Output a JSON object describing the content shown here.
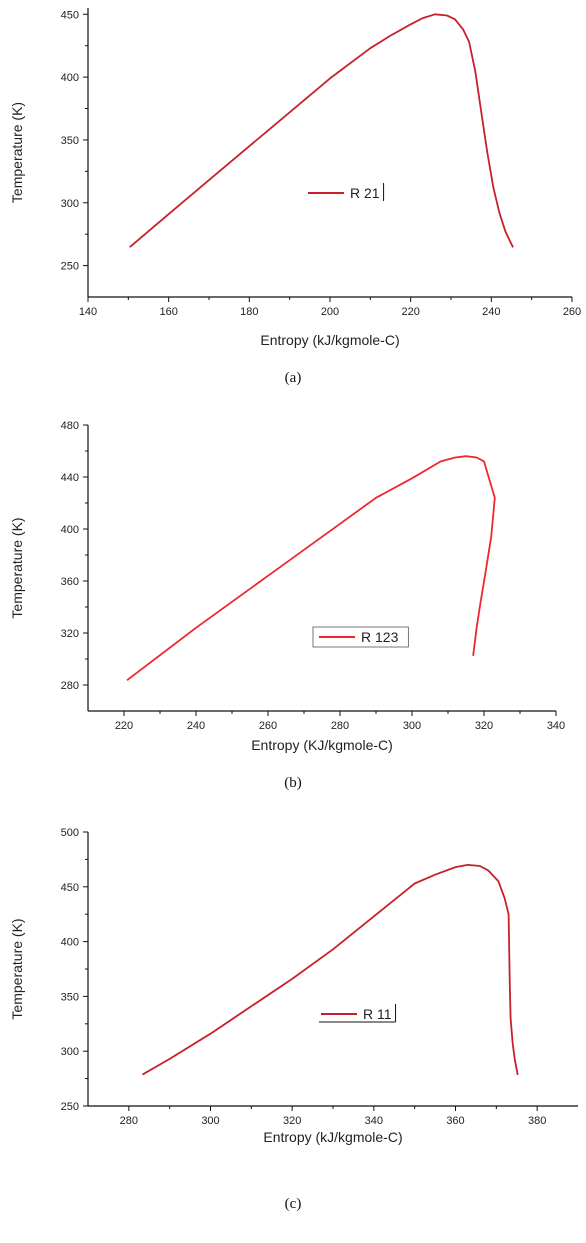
{
  "chart_data": [
    {
      "type": "line",
      "caption": "(a)",
      "xlabel": "Entropy (kJ/kgmole-C)",
      "ylabel": "Temperature (K)",
      "xlim": [
        140,
        260
      ],
      "ylim": [
        225,
        455
      ],
      "xticks": [
        140,
        160,
        180,
        200,
        220,
        240,
        260
      ],
      "yticks": [
        250,
        300,
        350,
        400,
        450
      ],
      "grid": false,
      "legend_position": "center",
      "line_color": "#c8202a",
      "series": [
        {
          "name": "R 21",
          "x": [
            150.5,
            160,
            170,
            180,
            190,
            200,
            210,
            215,
            220,
            223,
            226,
            229,
            231,
            233,
            234.5,
            236,
            237.5,
            239,
            240.5,
            242,
            243.5,
            245.3
          ],
          "y": [
            265,
            291,
            318,
            345,
            372,
            399,
            423,
            433,
            442,
            447,
            450,
            449,
            446,
            438,
            428,
            405,
            372,
            340,
            312,
            292,
            277,
            265
          ]
        }
      ]
    },
    {
      "type": "line",
      "caption": "(b)",
      "xlabel": "Entropy (KJ/kgmole-C)",
      "ylabel": "Temperature (K)",
      "xlim": [
        210,
        340
      ],
      "ylim": [
        260,
        480
      ],
      "xticks": [
        220,
        240,
        260,
        280,
        300,
        320,
        340
      ],
      "yticks": [
        280,
        320,
        360,
        400,
        440,
        480
      ],
      "grid": false,
      "legend_position": "center",
      "line_color": "#f0262e",
      "series": [
        {
          "name": "R 123",
          "x": [
            221,
            240,
            260,
            280,
            290,
            300,
            308,
            312,
            315,
            318,
            320,
            321.5,
            323,
            322,
            320.5,
            319,
            318,
            317
          ],
          "y": [
            284,
            324,
            364,
            404,
            424,
            439,
            452,
            455,
            456,
            455,
            452,
            438,
            424,
            394,
            368,
            343,
            325,
            303
          ]
        }
      ]
    },
    {
      "type": "line",
      "caption": "(c)",
      "xlabel": "Entropy (kJ/kgmole-C)",
      "ylabel": "Temperature (K)",
      "xlim": [
        270,
        390
      ],
      "ylim": [
        250,
        500
      ],
      "xticks": [
        280,
        300,
        320,
        340,
        360,
        380
      ],
      "yticks": [
        250,
        300,
        350,
        400,
        450,
        500
      ],
      "grid": false,
      "legend_position": "center",
      "line_color": "#c8202a",
      "series": [
        {
          "name": "R 11",
          "x": [
            283.5,
            290,
            300,
            310,
            320,
            330,
            340,
            350,
            355,
            360,
            363,
            366,
            368,
            370.5,
            372,
            373,
            373.3,
            373.5,
            374,
            374.5,
            375.2
          ],
          "y": [
            279,
            293,
            316,
            341,
            366,
            393,
            423,
            453,
            461,
            468,
            470,
            469,
            465,
            455,
            440,
            425,
            360,
            330,
            307,
            293,
            279
          ]
        }
      ]
    }
  ]
}
